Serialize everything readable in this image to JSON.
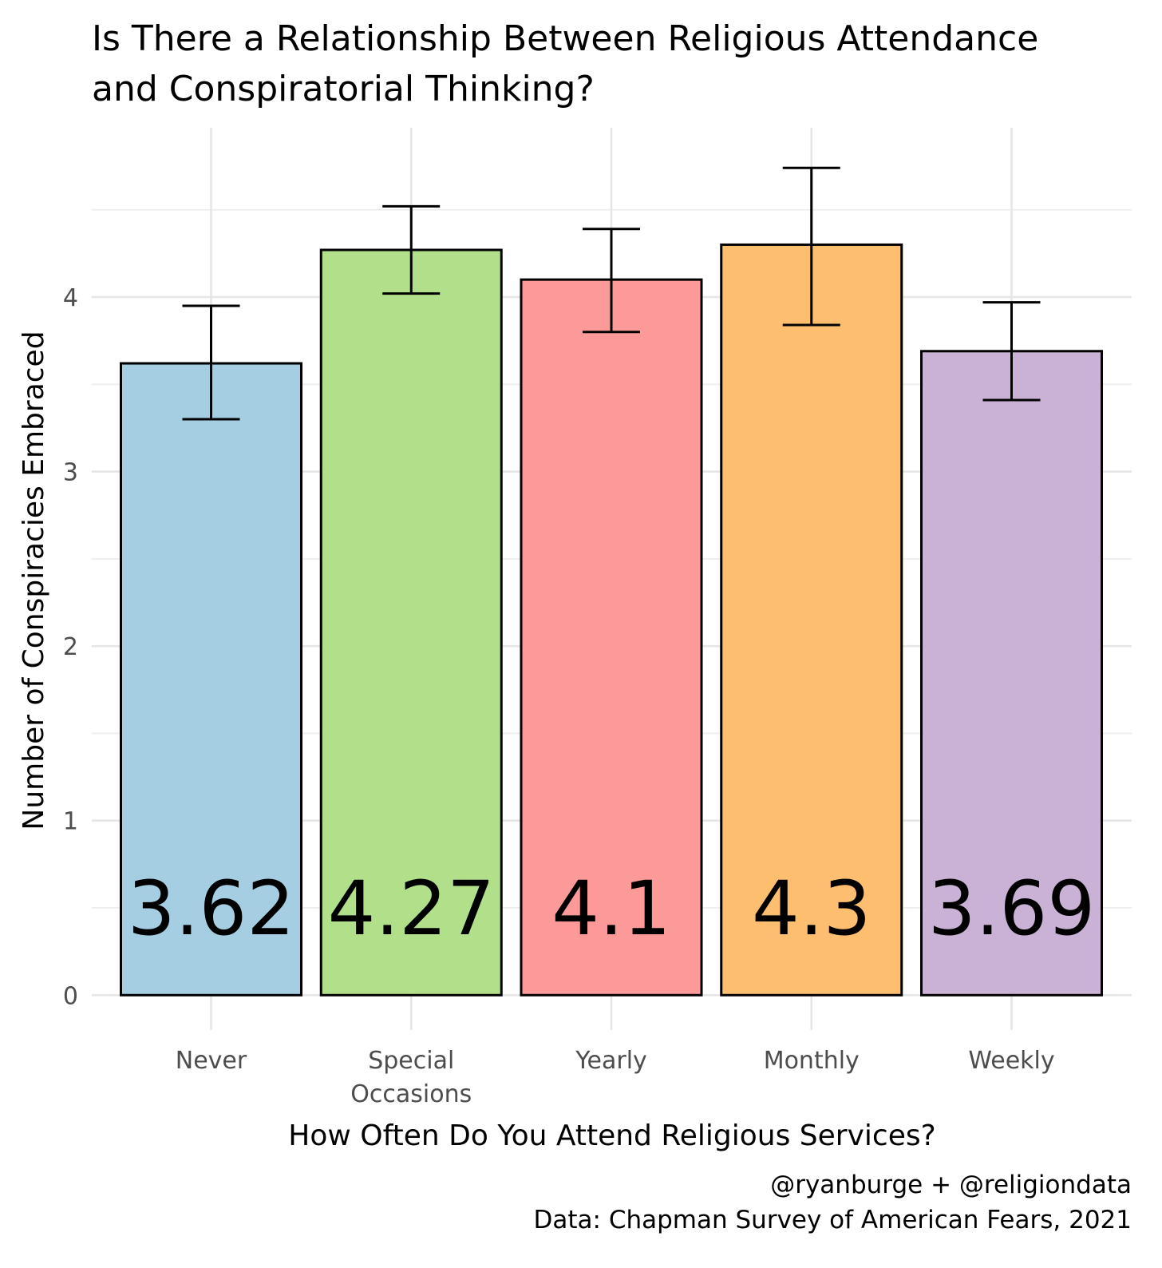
{
  "chart_data": {
    "type": "bar",
    "title_lines": [
      "Is There a Relationship Between Religious Attendance",
      "and Conspiratorial Thinking?"
    ],
    "xlabel": "How Often Do You Attend Religious Services?",
    "ylabel": "Number of Conspiracies Embraced",
    "categories": [
      {
        "lines": [
          "Never"
        ]
      },
      {
        "lines": [
          "Special",
          "Occasions"
        ]
      },
      {
        "lines": [
          "Yearly"
        ]
      },
      {
        "lines": [
          "Monthly"
        ]
      },
      {
        "lines": [
          "Weekly"
        ]
      }
    ],
    "values": [
      3.62,
      4.27,
      4.1,
      4.3,
      3.69
    ],
    "value_labels": [
      "3.62",
      "4.27",
      "4.1",
      "4.3",
      "3.69"
    ],
    "error_low": [
      3.3,
      4.02,
      3.8,
      3.84,
      3.41
    ],
    "error_high": [
      3.95,
      4.52,
      4.39,
      4.74,
      3.97
    ],
    "colors": [
      "#a6cee3",
      "#b2df8a",
      "#fb9a99",
      "#fdbf6f",
      "#cab2d6"
    ],
    "yticks": [
      "0",
      "1",
      "2",
      "3",
      "4"
    ],
    "ylim": [
      -0.2,
      4.97
    ],
    "grid": true,
    "legend": "none",
    "caption_lines": [
      "@ryanburge + @religiondata",
      "Data: Chapman Survey of American Fears, 2021"
    ]
  }
}
